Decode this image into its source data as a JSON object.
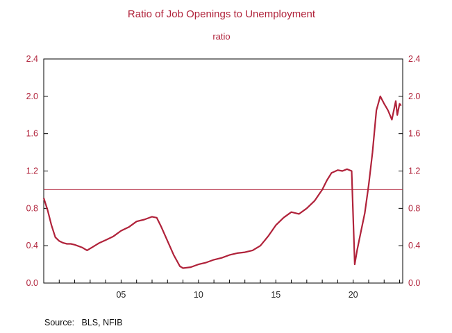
{
  "chart_data": {
    "type": "line",
    "title": "Ratio of Job Openings to Unemployment",
    "subtitle": "ratio",
    "source": "Source:   BLS, NFIB",
    "x_range": [
      2000.0,
      2023.2
    ],
    "ylim": [
      0.0,
      2.4
    ],
    "y_ticks": [
      0.0,
      0.4,
      0.8,
      1.2,
      1.6,
      2.0,
      2.4
    ],
    "y_tick_labels": [
      "0.0",
      "0.4",
      "0.8",
      "1.2",
      "1.6",
      "2.0",
      "2.4"
    ],
    "x_ticks": [
      2005,
      2010,
      2015,
      2020
    ],
    "x_tick_labels": [
      "05",
      "10",
      "15",
      "20"
    ],
    "reference_line": 1.0,
    "grid": false,
    "axes": "left and right y-axes, same scale",
    "colors": {
      "series": "#b0223a",
      "text": "#b0223a",
      "axis": "#000000"
    },
    "series": [
      {
        "x": [
          2000.0,
          2000.25,
          2000.5,
          2000.75,
          2001.0,
          2001.25,
          2001.5,
          2001.75,
          2002.0,
          2002.5,
          2002.8,
          2003.0,
          2003.3,
          2003.6,
          2004.0,
          2004.5,
          2005.0,
          2005.5,
          2006.0,
          2006.5,
          2007.0,
          2007.3,
          2007.6,
          2008.0,
          2008.4,
          2008.8,
          2009.0,
          2009.5,
          2010.0,
          2010.5,
          2011.0,
          2011.5,
          2012.0,
          2012.5,
          2013.0,
          2013.5,
          2014.0,
          2014.5,
          2015.0,
          2015.5,
          2016.0,
          2016.5,
          2017.0,
          2017.5,
          2018.0,
          2018.3,
          2018.6,
          2019.0,
          2019.3,
          2019.6,
          2019.9,
          2020.1,
          2020.25,
          2020.5,
          2020.75,
          2021.0,
          2021.25,
          2021.5,
          2021.75,
          2022.0,
          2022.25,
          2022.5,
          2022.75,
          2022.85,
          2023.0,
          2023.1
        ],
        "values": [
          0.91,
          0.78,
          0.62,
          0.49,
          0.45,
          0.43,
          0.42,
          0.42,
          0.41,
          0.38,
          0.35,
          0.37,
          0.4,
          0.43,
          0.46,
          0.5,
          0.56,
          0.6,
          0.66,
          0.68,
          0.71,
          0.7,
          0.6,
          0.45,
          0.3,
          0.18,
          0.16,
          0.17,
          0.2,
          0.22,
          0.25,
          0.27,
          0.3,
          0.32,
          0.33,
          0.35,
          0.4,
          0.5,
          0.62,
          0.7,
          0.76,
          0.74,
          0.8,
          0.88,
          1.0,
          1.1,
          1.18,
          1.21,
          1.2,
          1.22,
          1.2,
          0.2,
          0.35,
          0.55,
          0.75,
          1.05,
          1.4,
          1.85,
          2.0,
          1.92,
          1.85,
          1.75,
          1.95,
          1.8,
          1.92,
          1.9
        ]
      }
    ]
  }
}
